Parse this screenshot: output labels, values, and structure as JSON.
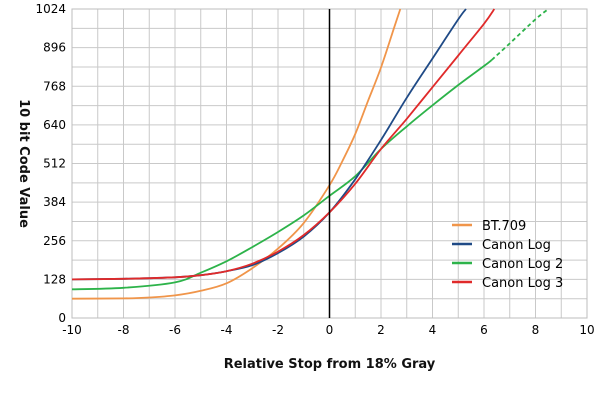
{
  "chart_data": {
    "type": "line",
    "title": "",
    "xlabel": "Relative Stop from 18% Gray",
    "ylabel": "10 bit Code Value",
    "xlim": [
      -10,
      10
    ],
    "ylim": [
      0,
      1024
    ],
    "xticks": [
      -10,
      -8,
      -6,
      -4,
      -2,
      0,
      2,
      4,
      6,
      8,
      10
    ],
    "yticks": [
      0,
      128,
      256,
      384,
      512,
      640,
      768,
      896,
      1024
    ],
    "x_tick_labels": [
      "-10",
      "-8",
      "-6",
      "-4",
      "-2",
      "0",
      "2",
      "4",
      "6",
      "8",
      "10"
    ],
    "y_tick_labels": [
      "0",
      "128",
      "256",
      "384",
      "512",
      "640",
      "768",
      "896",
      "1024"
    ],
    "grid": true,
    "zero_line": "vertical line at x = 0",
    "legend_position": "bottom-right",
    "series": [
      {
        "name": "BT.709",
        "color": "#f0954a",
        "points": [
          [
            -10,
            64
          ],
          [
            -8,
            65
          ],
          [
            -7,
            68
          ],
          [
            -6,
            75
          ],
          [
            -5,
            90
          ],
          [
            -4,
            115
          ],
          [
            -3,
            165
          ],
          [
            -2,
            230
          ],
          [
            -1,
            315
          ],
          [
            0,
            440
          ],
          [
            0.5,
            520
          ],
          [
            1,
            610
          ],
          [
            1.5,
            720
          ],
          [
            2,
            830
          ],
          [
            2.5,
            960
          ],
          [
            2.75,
            1024
          ]
        ]
      },
      {
        "name": "Canon Log",
        "color": "#1f4a86",
        "points": [
          [
            -10,
            128
          ],
          [
            -8,
            130
          ],
          [
            -6,
            135
          ],
          [
            -5,
            142
          ],
          [
            -4,
            155
          ],
          [
            -3,
            175
          ],
          [
            -2,
            215
          ],
          [
            -1,
            270
          ],
          [
            0,
            350
          ],
          [
            1,
            460
          ],
          [
            2,
            590
          ],
          [
            3,
            730
          ],
          [
            4,
            860
          ],
          [
            5,
            990
          ],
          [
            5.3,
            1024
          ]
        ]
      },
      {
        "name": "Canon Log 2",
        "color": "#2db34a",
        "dashed_from_x": 6.3,
        "points": [
          [
            -10,
            95
          ],
          [
            -8,
            100
          ],
          [
            -6,
            118
          ],
          [
            -5,
            150
          ],
          [
            -4,
            188
          ],
          [
            -3,
            235
          ],
          [
            -2,
            285
          ],
          [
            -1,
            340
          ],
          [
            0,
            405
          ],
          [
            1,
            470
          ],
          [
            2,
            560
          ],
          [
            3,
            635
          ],
          [
            4,
            705
          ],
          [
            5,
            772
          ],
          [
            6,
            835
          ],
          [
            6.3,
            855
          ],
          [
            7,
            910
          ],
          [
            8,
            990
          ],
          [
            8.5,
            1024
          ]
        ]
      },
      {
        "name": "Canon Log 3",
        "color": "#e02a2a",
        "points": [
          [
            -10,
            128
          ],
          [
            -8,
            130
          ],
          [
            -6,
            135
          ],
          [
            -5,
            142
          ],
          [
            -4,
            155
          ],
          [
            -3,
            180
          ],
          [
            -2,
            220
          ],
          [
            -1,
            275
          ],
          [
            0,
            350
          ],
          [
            1,
            445
          ],
          [
            2,
            560
          ],
          [
            3,
            660
          ],
          [
            4,
            765
          ],
          [
            5,
            870
          ],
          [
            6,
            975
          ],
          [
            6.4,
            1024
          ]
        ]
      }
    ]
  }
}
